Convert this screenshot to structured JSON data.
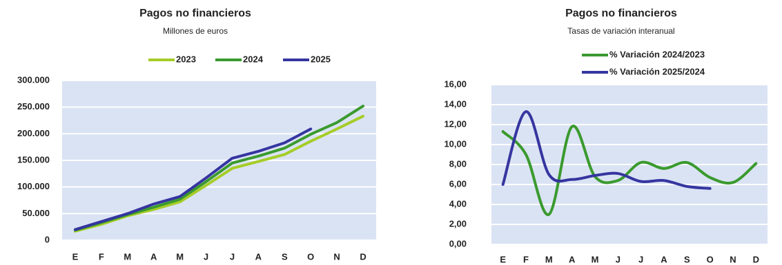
{
  "chart_data": [
    {
      "type": "line",
      "title": "Pagos no financieros",
      "subtitle": "Millones de euros",
      "categories": [
        "E",
        "F",
        "M",
        "A",
        "M",
        "J",
        "J",
        "A",
        "S",
        "O",
        "N",
        "D"
      ],
      "series": [
        {
          "name": "2023",
          "color": "#a5cd28",
          "values": [
            17000,
            30000,
            46000,
            58000,
            72000,
            103000,
            135000,
            148000,
            161000,
            186000,
            209000,
            233000
          ]
        },
        {
          "name": "2024",
          "color": "#3a9a2e",
          "values": [
            19000,
            33000,
            48000,
            62000,
            77000,
            110000,
            145000,
            158000,
            173000,
            199000,
            221000,
            252000
          ]
        },
        {
          "name": "2025",
          "color": "#3535a0",
          "values": [
            20000,
            35000,
            50000,
            68000,
            82000,
            117000,
            154000,
            167000,
            183000,
            209000,
            null,
            null
          ]
        }
      ],
      "ylim": [
        0,
        300000
      ],
      "yticks": [
        0,
        {
          "value": 50000,
          "label": "50.000"
        },
        {
          "value": 100000,
          "label": "100.000"
        },
        {
          "value": 150000,
          "label": "150.000"
        },
        {
          "value": 200000,
          "label": "200.000"
        },
        {
          "value": 250000,
          "label": "250.000"
        },
        {
          "value": 300000,
          "label": "300.000"
        }
      ],
      "grid": true,
      "legend": "top",
      "smooth": false
    },
    {
      "type": "line",
      "title": "Pagos no financieros",
      "subtitle": "Tasas de variación interanual",
      "categories": [
        "E",
        "F",
        "M",
        "A",
        "M",
        "J",
        "J",
        "A",
        "S",
        "O",
        "N",
        "D"
      ],
      "series": [
        {
          "name": "% Variación 2024/2023",
          "color": "#3a9a2e",
          "values": [
            11.3,
            9.0,
            3.0,
            11.8,
            6.8,
            6.4,
            8.2,
            7.6,
            8.2,
            6.7,
            6.2,
            8.1
          ]
        },
        {
          "name": "% Variación 2025/2024",
          "color": "#3535a0",
          "values": [
            6.0,
            13.3,
            7.0,
            6.5,
            6.9,
            7.1,
            6.3,
            6.4,
            5.8,
            5.6,
            null,
            null
          ]
        }
      ],
      "ylim": [
        0,
        16
      ],
      "yticks": [
        {
          "value": 0,
          "label": "0,00"
        },
        {
          "value": 2,
          "label": "2,00"
        },
        {
          "value": 4,
          "label": "4,00"
        },
        {
          "value": 6,
          "label": "6,00"
        },
        {
          "value": 8,
          "label": "8,00"
        },
        {
          "value": 10,
          "label": "10,00"
        },
        {
          "value": 12,
          "label": "12,00"
        },
        {
          "value": 14,
          "label": "14,00"
        },
        {
          "value": 16,
          "label": "16,00"
        }
      ],
      "grid": true,
      "legend": "top right",
      "smooth": true
    }
  ]
}
